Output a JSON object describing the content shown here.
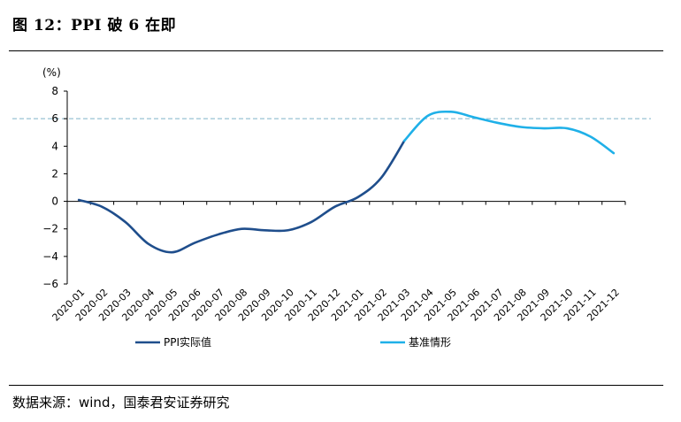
{
  "title": "图 12：PPI 破 6 在即",
  "source": "数据来源：wind，国泰君安证券研究",
  "chart_data": {
    "type": "line",
    "ylabel": "(%)",
    "ylim": [
      -6,
      8
    ],
    "yticks": [
      8,
      6,
      4,
      2,
      0,
      -2,
      -4,
      -6
    ],
    "ytick_labels": [
      "8",
      "6",
      "4",
      "2",
      "0",
      "−2",
      "−4",
      "−6"
    ],
    "categories": [
      "2020-01",
      "2020-02",
      "2020-03",
      "2020-04",
      "2020-05",
      "2020-06",
      "2020-07",
      "2020-08",
      "2020-09",
      "2020-10",
      "2020-11",
      "2020-12",
      "2021-01",
      "2021-02",
      "2021-03",
      "2021-04",
      "2021-05",
      "2021-06",
      "2021-07",
      "2021-08",
      "2021-09",
      "2021-10",
      "2021-11",
      "2021-12"
    ],
    "reference_line": {
      "y": 6,
      "style": "dashed",
      "color": "#7fb3c9"
    },
    "legend_position": "bottom",
    "series": [
      {
        "name": "PPI实际值",
        "color": "#1f4e8c",
        "values": [
          0.1,
          -0.4,
          -1.5,
          -3.1,
          -3.7,
          -3.0,
          -2.4,
          -2.0,
          -2.1,
          -2.1,
          -1.5,
          -0.4,
          0.3,
          1.7,
          4.4,
          null,
          null,
          null,
          null,
          null,
          null,
          null,
          null,
          null
        ]
      },
      {
        "name": "基准情形",
        "color": "#1fb0e8",
        "values": [
          null,
          null,
          null,
          null,
          null,
          null,
          null,
          null,
          null,
          null,
          null,
          null,
          null,
          null,
          4.4,
          6.2,
          6.5,
          6.1,
          5.7,
          5.4,
          5.3,
          5.3,
          4.7,
          3.5
        ]
      }
    ]
  }
}
